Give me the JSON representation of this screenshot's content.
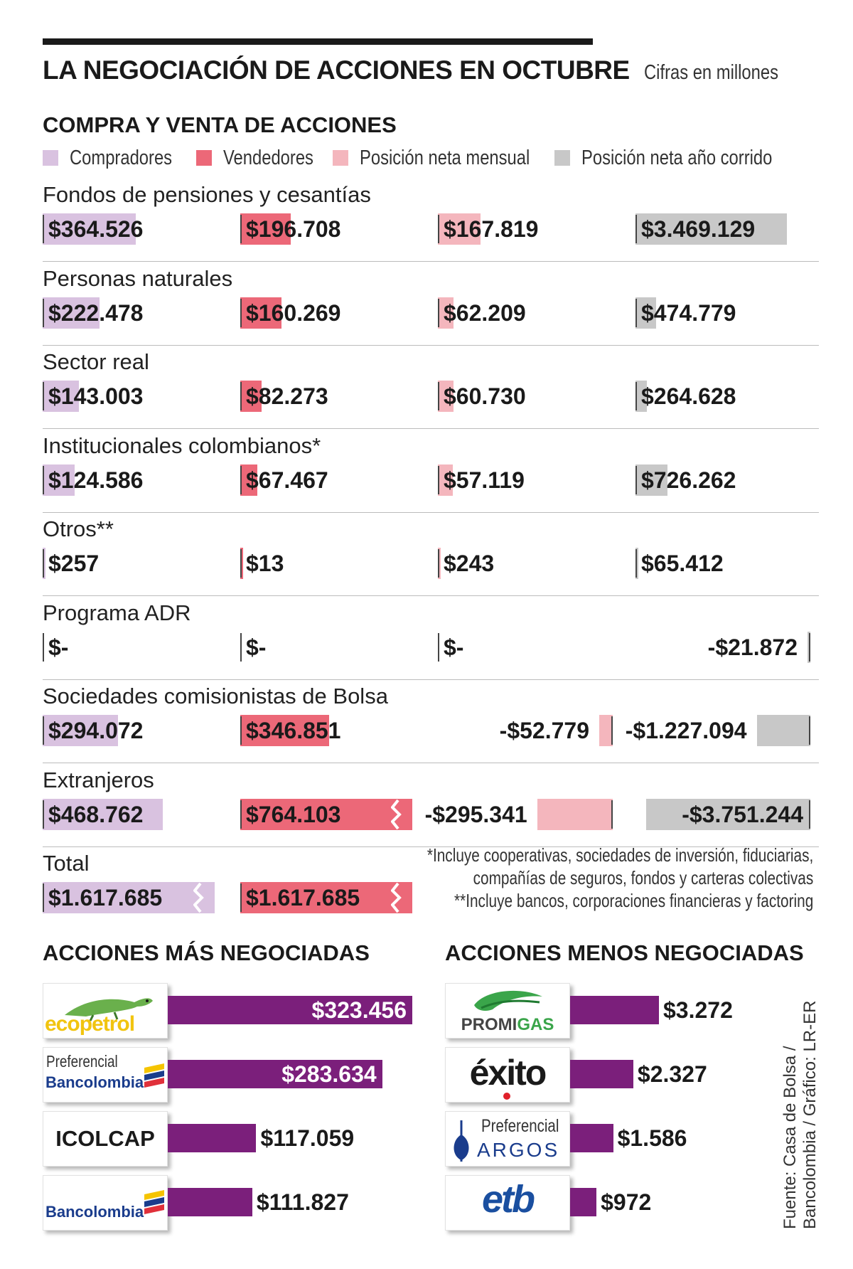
{
  "title": "LA NEGOCIACIÓN DE ACCIONES EN OCTUBRE",
  "units_note": "Cifras en millones",
  "subtitle": "COMPRA Y VENTA DE ACCIONES",
  "legend": [
    {
      "label": "Compradores",
      "color": "#d9c2e0"
    },
    {
      "label": "Vendedores",
      "color": "#ec6878"
    },
    {
      "label": "Posición neta mensual",
      "color": "#f4b6bd"
    },
    {
      "label": "Posición neta año corrido",
      "color": "#c8c8c8"
    }
  ],
  "colors": {
    "compradores": "#d9c2e0",
    "vendedores": "#ec6878",
    "neta_mensual": "#f4b6bd",
    "neta_anual": "#c8c8c8",
    "stock_bar": "#7b1f7b"
  },
  "chart_data": [
    {
      "type": "bar",
      "title": "COMPRA Y VENTA DE ACCIONES",
      "units": "millones de pesos",
      "series_names": [
        "Compradores",
        "Vendedores",
        "Posición neta mensual",
        "Posición neta año corrido"
      ],
      "rows": [
        {
          "label": "Fondos de pensiones y cesantías",
          "values": [
            364526,
            196708,
            167819,
            3469129
          ],
          "labels": [
            "$364.526",
            "$196.708",
            "$167.819",
            "$3.469.129"
          ]
        },
        {
          "label": "Personas naturales",
          "values": [
            222478,
            160269,
            62209,
            474779
          ],
          "labels": [
            "$222.478",
            "$160.269",
            "$62.209",
            "$474.779"
          ]
        },
        {
          "label": "Sector real",
          "values": [
            143003,
            82273,
            60730,
            264628
          ],
          "labels": [
            "$143.003",
            "$82.273",
            "$60.730",
            "$264.628"
          ]
        },
        {
          "label": "Institucionales colombianos*",
          "values": [
            124586,
            67467,
            57119,
            726262
          ],
          "labels": [
            "$124.586",
            "$67.467",
            "$57.119",
            "$726.262"
          ]
        },
        {
          "label": "Otros**",
          "values": [
            257,
            13,
            243,
            65412
          ],
          "labels": [
            "$257",
            "$13",
            "$243",
            "$65.412"
          ]
        },
        {
          "label": "Programa ADR",
          "values": [
            0,
            0,
            0,
            -21872
          ],
          "labels": [
            "$-",
            "$-",
            "$-",
            "-$21.872"
          ]
        },
        {
          "label": "Sociedades comisionistas de Bolsa",
          "values": [
            294072,
            346851,
            -52779,
            -1227094
          ],
          "labels": [
            "$294.072",
            "$346.851",
            "-$52.779",
            "-$1.227.094"
          ]
        },
        {
          "label": "Extranjeros",
          "values": [
            468762,
            764103,
            -295341,
            -3751244
          ],
          "labels": [
            "$468.762",
            "$764.103",
            "-$295.341",
            "-$3.751.244"
          ]
        },
        {
          "label": "Total",
          "values": [
            1617685,
            1617685,
            null,
            null
          ],
          "labels": [
            "$1.617.685",
            "$1.617.685",
            "",
            ""
          ]
        }
      ]
    },
    {
      "type": "bar",
      "title": "ACCIONES MÁS NEGOCIADAS",
      "categories": [
        "Ecopetrol",
        "Preferencial Bancolombia",
        "ICOLCAP",
        "Bancolombia"
      ],
      "values": [
        323456,
        283634,
        117059,
        111827
      ],
      "labels": [
        "$323.456",
        "$283.634",
        "$117.059",
        "$111.827"
      ]
    },
    {
      "type": "bar",
      "title": "ACCIONES MENOS NEGOCIADAS",
      "categories": [
        "Promigas",
        "Éxito",
        "Preferencial Argos",
        "ETB"
      ],
      "values": [
        3272,
        2327,
        1586,
        972
      ],
      "labels": [
        "$3.272",
        "$2.327",
        "$1.586",
        "$972"
      ]
    }
  ],
  "footnotes": [
    "*Incluye cooperativas, sociedades de inversión, fiduciarias,",
    "compañías de seguros, fondos y carteras colectivas",
    "**Incluye bancos, corporaciones financieras y factoring"
  ],
  "logos": {
    "ecopetrol": "ecopetrol",
    "pref_bancolombia_top": "Preferencial",
    "pref_bancolombia_bottom": "Bancolombia",
    "icolcap": "ICOLCAP",
    "bancolombia": "Bancolombia",
    "promigas_a": "PROMI",
    "promigas_b": "GAS",
    "exito": "éxito",
    "pref_argos_top": "Preferencial",
    "pref_argos_bottom": "ARGOS",
    "etb": "etb"
  },
  "source": [
    "Fuente: Casa de Bolsa /",
    "Bancolombia / Gráfico: LR-ER"
  ]
}
